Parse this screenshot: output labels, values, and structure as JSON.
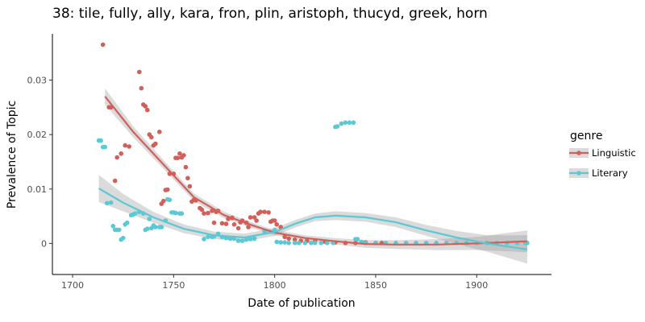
{
  "chart_data": {
    "type": "scatter",
    "title": "38: tile, fully, ally, kara, fron, plin, aristoph, thucyd, greek, horn",
    "xlabel": "Date of publication",
    "ylabel": "Prevalence of Topic",
    "xlim": [
      1690,
      1937
    ],
    "ylim": [
      -0.0057,
      0.0385
    ],
    "xticks": [
      1700,
      1750,
      1800,
      1850,
      1900
    ],
    "xtick_labels": [
      "1700",
      "1750",
      "1800",
      "1850",
      "1900"
    ],
    "yticks": [
      0,
      0.01,
      0.02,
      0.03
    ],
    "ytick_labels": [
      "0",
      "0.01",
      "0.02",
      "0.03"
    ],
    "grid": false,
    "legend": {
      "title": "genre",
      "position": "right"
    },
    "series": [
      {
        "name": "Linguistic",
        "color": "#d1605a",
        "points": [
          [
            1715,
            0.0365
          ],
          [
            1718,
            0.025
          ],
          [
            1719,
            0.025
          ],
          [
            1721,
            0.0115
          ],
          [
            1722,
            0.0158
          ],
          [
            1724,
            0.0165
          ],
          [
            1726,
            0.018
          ],
          [
            1728,
            0.0178
          ],
          [
            1733,
            0.0315
          ],
          [
            1734,
            0.0285
          ],
          [
            1735,
            0.0255
          ],
          [
            1736,
            0.0252
          ],
          [
            1737,
            0.0245
          ],
          [
            1738,
            0.02
          ],
          [
            1739,
            0.0195
          ],
          [
            1740,
            0.018
          ],
          [
            1741,
            0.0183
          ],
          [
            1743,
            0.0205
          ],
          [
            1744,
            0.0073
          ],
          [
            1745,
            0.0078
          ],
          [
            1746,
            0.0098
          ],
          [
            1747,
            0.0099
          ],
          [
            1748,
            0.0128
          ],
          [
            1750,
            0.0128
          ],
          [
            1751,
            0.0157
          ],
          [
            1752,
            0.0157
          ],
          [
            1753,
            0.0165
          ],
          [
            1754,
            0.0158
          ],
          [
            1755,
            0.0162
          ],
          [
            1756,
            0.014
          ],
          [
            1757,
            0.012
          ],
          [
            1758,
            0.0105
          ],
          [
            1759,
            0.0077
          ],
          [
            1760,
            0.008
          ],
          [
            1761,
            0.0079
          ],
          [
            1763,
            0.0065
          ],
          [
            1764,
            0.0062
          ],
          [
            1765,
            0.0055
          ],
          [
            1767,
            0.0056
          ],
          [
            1769,
            0.006
          ],
          [
            1770,
            0.0038
          ],
          [
            1771,
            0.0058
          ],
          [
            1772,
            0.006
          ],
          [
            1774,
            0.0037
          ],
          [
            1776,
            0.0036
          ],
          [
            1777,
            0.0045
          ],
          [
            1779,
            0.0047
          ],
          [
            1780,
            0.0035
          ],
          [
            1782,
            0.0028
          ],
          [
            1783,
            0.0039
          ],
          [
            1784,
            0.0042
          ],
          [
            1786,
            0.0038
          ],
          [
            1787,
            0.003
          ],
          [
            1788,
            0.0048
          ],
          [
            1790,
            0.0048
          ],
          [
            1791,
            0.0042
          ],
          [
            1792,
            0.0055
          ],
          [
            1793,
            0.0058
          ],
          [
            1795,
            0.0058
          ],
          [
            1797,
            0.0057
          ],
          [
            1798,
            0.004
          ],
          [
            1799,
            0.0042
          ],
          [
            1800,
            0.0042
          ],
          [
            1801,
            0.0035
          ],
          [
            1803,
            0.003
          ],
          [
            1805,
            0.0012
          ],
          [
            1807,
            0.0009
          ],
          [
            1810,
            0.0007
          ],
          [
            1813,
            0.0005
          ],
          [
            1816,
            0.0005
          ],
          [
            1820,
            0.0004
          ],
          [
            1825,
            0.0003
          ],
          [
            1830,
            0.0002
          ],
          [
            1835,
            0.0001
          ],
          [
            1840,
            0.0001
          ],
          [
            1845,
            0.0002
          ],
          [
            1850,
            0.0001
          ],
          [
            1853,
            0.0001
          ]
        ],
        "smooth": {
          "x": [
            1716,
            1730,
            1745,
            1760,
            1775,
            1790,
            1800,
            1815,
            1830,
            1845,
            1860,
            1880,
            1900,
            1925
          ],
          "y": [
            0.027,
            0.0205,
            0.0145,
            0.0085,
            0.0052,
            0.0032,
            0.002,
            0.001,
            0.0004,
            -0.0001,
            -0.0002,
            -0.0002,
            0.0,
            0.0004
          ],
          "band": [
            0.0015,
            0.001,
            0.0008,
            0.0007,
            0.0006,
            0.0005,
            0.0005,
            0.0005,
            0.0006,
            0.0007,
            0.0008,
            0.001,
            0.0012,
            0.002
          ]
        }
      },
      {
        "name": "Literary",
        "color": "#5bc8d5",
        "points": [
          [
            1713,
            0.0189
          ],
          [
            1714,
            0.0189
          ],
          [
            1715,
            0.0177
          ],
          [
            1716,
            0.0177
          ],
          [
            1717,
            0.0074
          ],
          [
            1719,
            0.0075
          ],
          [
            1720,
            0.0032
          ],
          [
            1721,
            0.0025
          ],
          [
            1722,
            0.0025
          ],
          [
            1723,
            0.0025
          ],
          [
            1724,
            0.0007
          ],
          [
            1725,
            0.001
          ],
          [
            1726,
            0.0035
          ],
          [
            1727,
            0.0038
          ],
          [
            1729,
            0.0052
          ],
          [
            1730,
            0.0053
          ],
          [
            1731,
            0.0055
          ],
          [
            1733,
            0.0058
          ],
          [
            1735,
            0.0055
          ],
          [
            1736,
            0.0025
          ],
          [
            1737,
            0.0027
          ],
          [
            1738,
            0.0045
          ],
          [
            1739,
            0.0028
          ],
          [
            1740,
            0.0033
          ],
          [
            1741,
            0.003
          ],
          [
            1743,
            0.003
          ],
          [
            1744,
            0.003
          ],
          [
            1746,
            0.0042
          ],
          [
            1747,
            0.0081
          ],
          [
            1748,
            0.008
          ],
          [
            1749,
            0.0057
          ],
          [
            1750,
            0.0057
          ],
          [
            1751,
            0.0056
          ],
          [
            1753,
            0.0055
          ],
          [
            1754,
            0.0055
          ],
          [
            1765,
            0.0008
          ],
          [
            1767,
            0.0012
          ],
          [
            1769,
            0.0012
          ],
          [
            1770,
            0.0013
          ],
          [
            1772,
            0.0018
          ],
          [
            1774,
            0.0012
          ],
          [
            1776,
            0.001
          ],
          [
            1778,
            0.0009
          ],
          [
            1780,
            0.0009
          ],
          [
            1782,
            0.0005
          ],
          [
            1784,
            0.0005
          ],
          [
            1786,
            0.0007
          ],
          [
            1788,
            0.0008
          ],
          [
            1790,
            0.0009
          ],
          [
            1795,
            0.0022
          ],
          [
            1800,
            0.0025
          ],
          [
            1801,
            0.0003
          ],
          [
            1803,
            0.0002
          ],
          [
            1805,
            0.0002
          ],
          [
            1807,
            0.0001
          ],
          [
            1810,
            0.0001
          ],
          [
            1812,
            0.0001
          ],
          [
            1815,
            0.0001
          ],
          [
            1818,
            0.0001
          ],
          [
            1820,
            0.0001
          ],
          [
            1823,
            0.0001
          ],
          [
            1826,
            0.0001
          ],
          [
            1829,
            0.0001
          ],
          [
            1830,
            0.0214
          ],
          [
            1831,
            0.0215
          ],
          [
            1833,
            0.022
          ],
          [
            1835,
            0.0222
          ],
          [
            1837,
            0.0222
          ],
          [
            1839,
            0.0222
          ],
          [
            1840,
            0.0008
          ],
          [
            1841,
            0.0008
          ],
          [
            1843,
            0.0003
          ],
          [
            1845,
            0.0001
          ],
          [
            1850,
            0.0001
          ],
          [
            1855,
            0.0001
          ],
          [
            1860,
            0.0001
          ],
          [
            1865,
            0.0001
          ],
          [
            1870,
            0.0001
          ],
          [
            1875,
            0.0001
          ],
          [
            1880,
            0.0001
          ],
          [
            1885,
            0.0001
          ],
          [
            1890,
            0.0001
          ],
          [
            1895,
            0.0001
          ],
          [
            1900,
            0.0001
          ],
          [
            1905,
            0.0001
          ],
          [
            1910,
            0.0001
          ],
          [
            1915,
            0.0001
          ],
          [
            1920,
            0.0001
          ],
          [
            1924,
            0.0001
          ],
          [
            1925,
            0.0001
          ]
        ],
        "smooth": {
          "x": [
            1713,
            1725,
            1740,
            1755,
            1770,
            1785,
            1800,
            1810,
            1820,
            1830,
            1845,
            1860,
            1875,
            1890,
            1905,
            1925
          ],
          "y": [
            0.0101,
            0.0075,
            0.0048,
            0.0027,
            0.0015,
            0.0011,
            0.0021,
            0.0036,
            0.0048,
            0.0051,
            0.0048,
            0.0039,
            0.0024,
            0.0011,
            0.0,
            -0.0011
          ],
          "band": [
            0.0025,
            0.0016,
            0.001,
            0.0008,
            0.0007,
            0.0007,
            0.0007,
            0.0007,
            0.0007,
            0.0008,
            0.0008,
            0.0009,
            0.001,
            0.0012,
            0.0015,
            0.0026
          ]
        }
      }
    ]
  }
}
